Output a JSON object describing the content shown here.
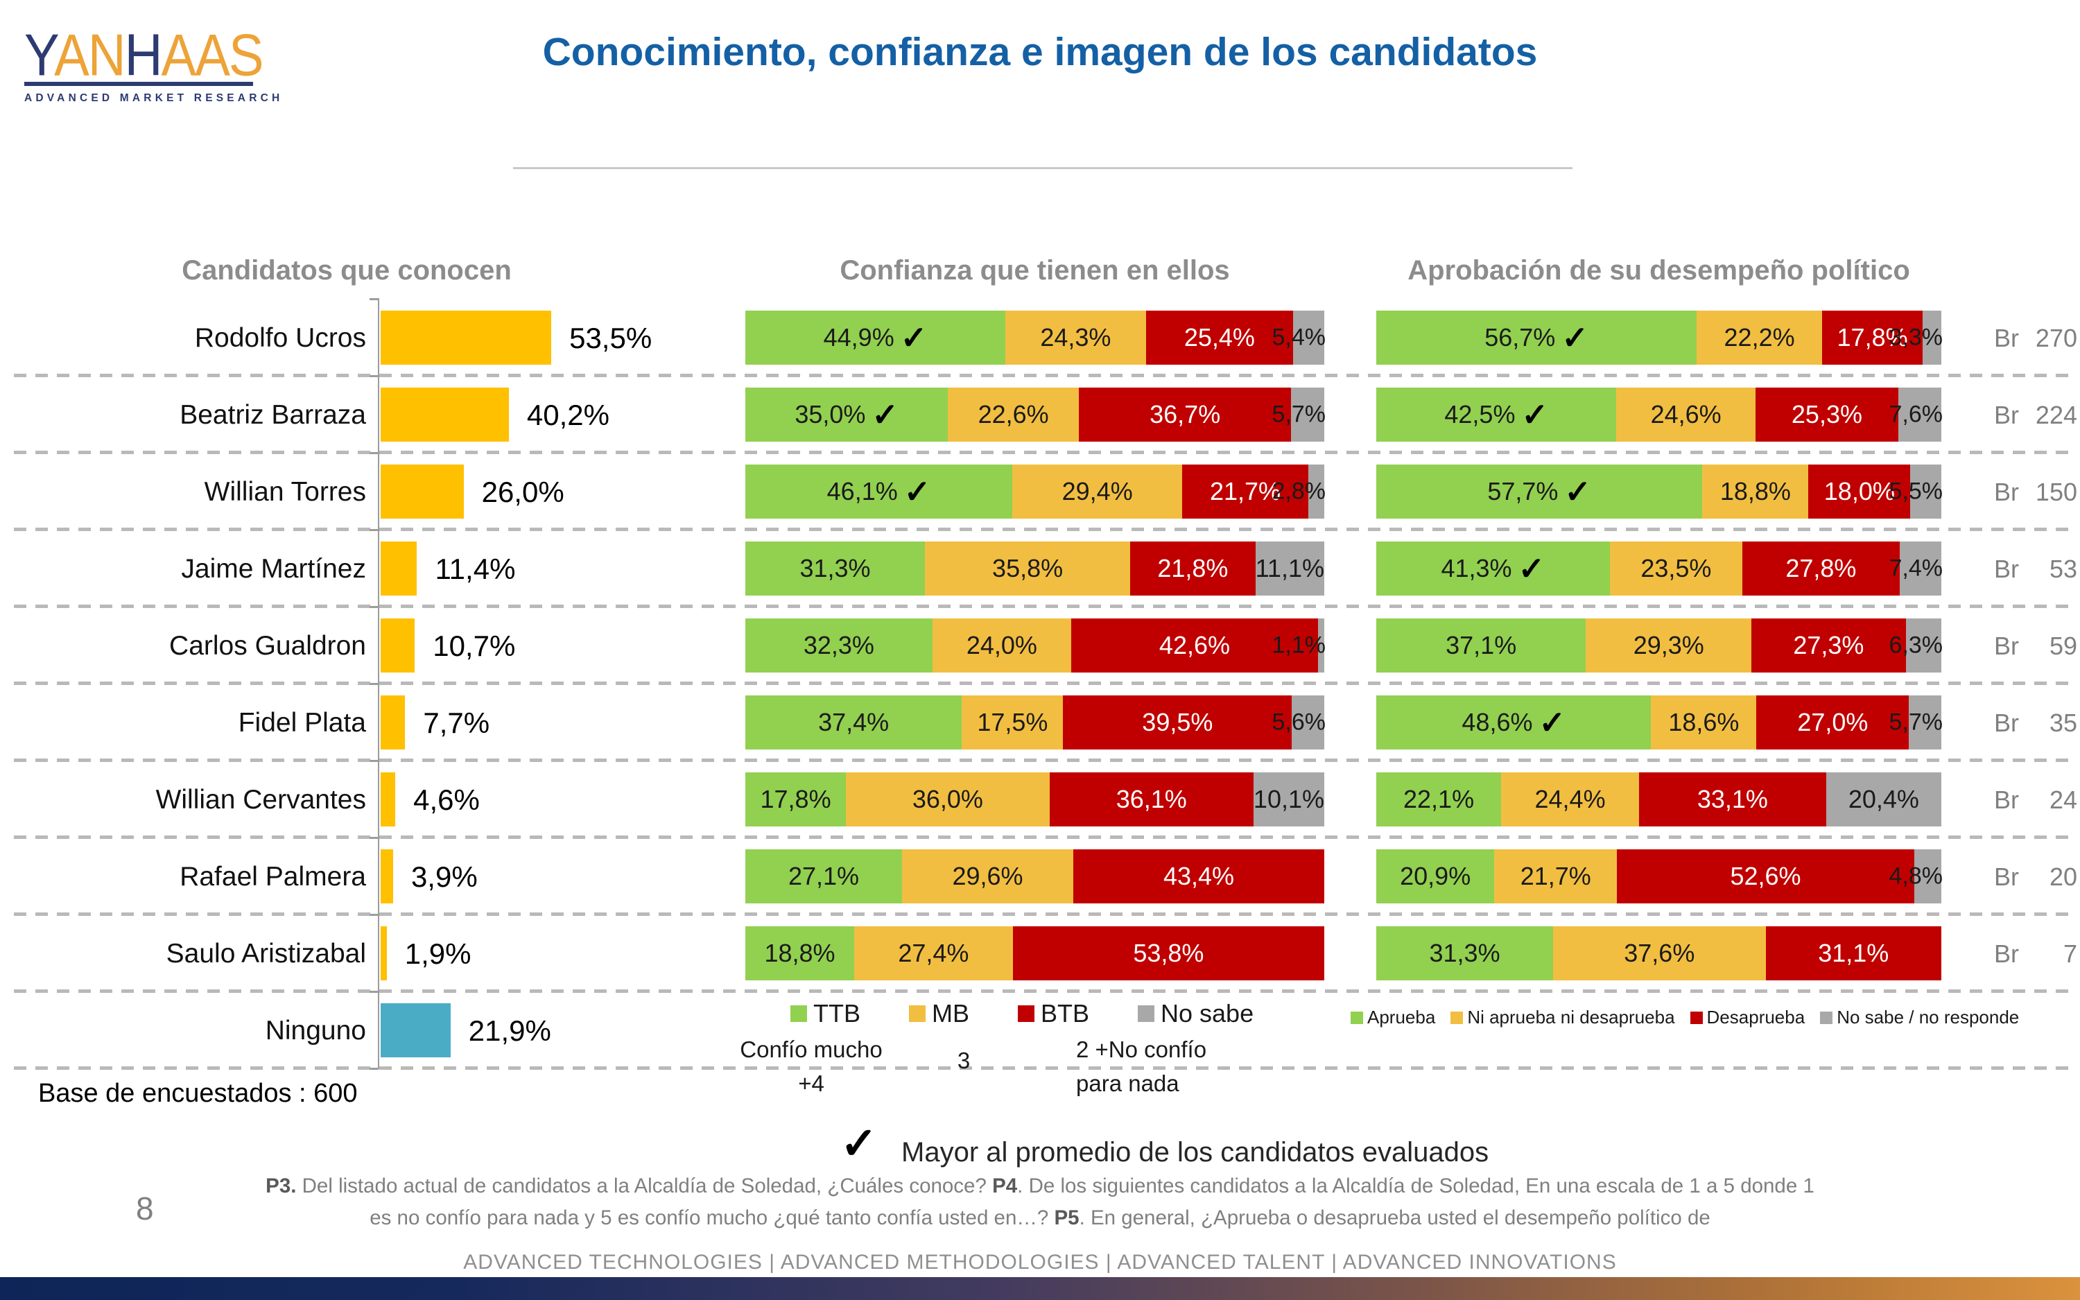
{
  "logo": {
    "word_parts": [
      {
        "t": "Y",
        "c": "#2C3B72"
      },
      {
        "t": "AN",
        "c": "#EDA338"
      },
      {
        "t": "H",
        "c": "#2C3B72"
      },
      {
        "t": "AAS",
        "c": "#EDA338"
      }
    ],
    "subtitle": "ADVANCED MARKET RESEARCH"
  },
  "title": "Conocimiento, confianza e imagen de los candidatos",
  "marks": {
    "check": "✓",
    "br_prefix": "Br"
  },
  "colors": {
    "title_blue": "#1460A5",
    "header_gray": "#8C8C8C",
    "known_bar": "#FFC000",
    "ninguno_bar": "#4BACC6",
    "green": "#92D050",
    "yellow": "#F2BE41",
    "red": "#C00000",
    "gray": "#A8A8A8"
  },
  "chart_data": [
    {
      "type": "bar",
      "title": "Candidatos que conocen",
      "categories": [
        "Rodolfo Ucros",
        "Beatriz Barraza",
        "Willian Torres",
        "Jaime Martínez",
        "Carlos Gualdron",
        "Fidel Plata",
        "Willian Cervantes",
        "Rafael Palmera",
        "Saulo Aristizabal",
        "Ninguno"
      ],
      "values": [
        53.5,
        40.2,
        26.0,
        11.4,
        10.7,
        7.7,
        4.6,
        3.9,
        1.9,
        21.9
      ],
      "unit": "%",
      "decimal_comma": true,
      "xlim": [
        0,
        60
      ],
      "bar_color": "#FFC000",
      "ninguno_color": "#4BACC6"
    },
    {
      "type": "stacked_bar",
      "title": "Confianza que tienen en ellos",
      "categories": [
        "Rodolfo Ucros",
        "Beatriz Barraza",
        "Willian Torres",
        "Jaime Martínez",
        "Carlos Gualdron",
        "Fidel Plata",
        "Willian Cervantes",
        "Rafael Palmera",
        "Saulo Aristizabal"
      ],
      "series": [
        {
          "name": "TTB",
          "color": "#92D050",
          "values": [
            44.9,
            35.0,
            46.1,
            31.3,
            32.3,
            37.4,
            17.8,
            27.1,
            18.8
          ]
        },
        {
          "name": "MB",
          "color": "#F2BE41",
          "values": [
            24.3,
            22.6,
            29.4,
            35.8,
            24.0,
            17.5,
            36.0,
            29.6,
            27.4
          ]
        },
        {
          "name": "BTB",
          "color": "#C00000",
          "values": [
            25.4,
            36.7,
            21.7,
            21.8,
            42.6,
            39.5,
            36.1,
            43.4,
            53.8
          ]
        },
        {
          "name": "No sabe",
          "color": "#A8A8A8",
          "values": [
            5.4,
            5.7,
            2.8,
            11.1,
            1.1,
            5.6,
            10.1,
            null,
            null
          ]
        }
      ],
      "above_average_checks": [
        true,
        true,
        true,
        false,
        false,
        false,
        false,
        false,
        false
      ],
      "scale_notes": {
        "ttb": [
          "Confío mucho",
          "+4"
        ],
        "mb": "3",
        "btb": [
          "2 +No confío",
          "para nada"
        ]
      }
    },
    {
      "type": "stacked_bar",
      "title": "Aprobación de su desempeño político",
      "categories": [
        "Rodolfo Ucros",
        "Beatriz Barraza",
        "Willian Torres",
        "Jaime Martínez",
        "Carlos Gualdron",
        "Fidel Plata",
        "Willian Cervantes",
        "Rafael Palmera",
        "Saulo Aristizabal"
      ],
      "series": [
        {
          "name": "Aprueba",
          "color": "#92D050",
          "values": [
            56.7,
            42.5,
            57.7,
            41.3,
            37.1,
            48.6,
            22.1,
            20.9,
            31.3
          ]
        },
        {
          "name": "Ni aprueba ni desaprueba",
          "color": "#F2BE41",
          "values": [
            22.2,
            24.6,
            18.8,
            23.5,
            29.3,
            18.6,
            24.4,
            21.7,
            37.6
          ]
        },
        {
          "name": "Desaprueba",
          "color": "#C00000",
          "values": [
            17.8,
            25.3,
            18.0,
            27.8,
            27.3,
            27.0,
            33.1,
            52.6,
            31.1
          ]
        },
        {
          "name": "No sabe / no responde",
          "color": "#A8A8A8",
          "values": [
            3.3,
            7.6,
            5.5,
            7.4,
            6.3,
            5.7,
            20.4,
            4.8,
            null
          ]
        }
      ],
      "above_average_checks": [
        true,
        true,
        true,
        true,
        false,
        true,
        false,
        false,
        false
      ],
      "base_br": [
        270,
        224,
        150,
        53,
        59,
        35,
        24,
        20,
        7
      ]
    }
  ],
  "check_note": "Mayor al promedio de los candidatos evaluados",
  "base_note": "Base de encuestados : 600",
  "footnote_lines": [
    [
      {
        "b": 1,
        "t": "P3."
      },
      {
        "b": 0,
        "t": " Del listado actual de candidatos a la Alcaldía de Soledad, ¿Cuáles conoce?  "
      },
      {
        "b": 1,
        "t": "P4"
      },
      {
        "b": 0,
        "t": ". De los siguientes candidatos a la Alcaldía de Soledad, En una escala de 1 a 5 donde 1"
      }
    ],
    [
      {
        "b": 0,
        "t": "es no confío para nada y 5 es confío mucho ¿qué tanto confía usted en…? "
      },
      {
        "b": 1,
        "t": "P5"
      },
      {
        "b": 0,
        "t": ". En general, ¿Aprueba o desaprueba usted el desempeño político de"
      }
    ]
  ],
  "page_number": "8",
  "footer": "ADVANCED TECHNOLOGIES   |   ADVANCED METHODOLOGIES   |   ADVANCED TALENT   |   ADVANCED INNOVATIONS"
}
